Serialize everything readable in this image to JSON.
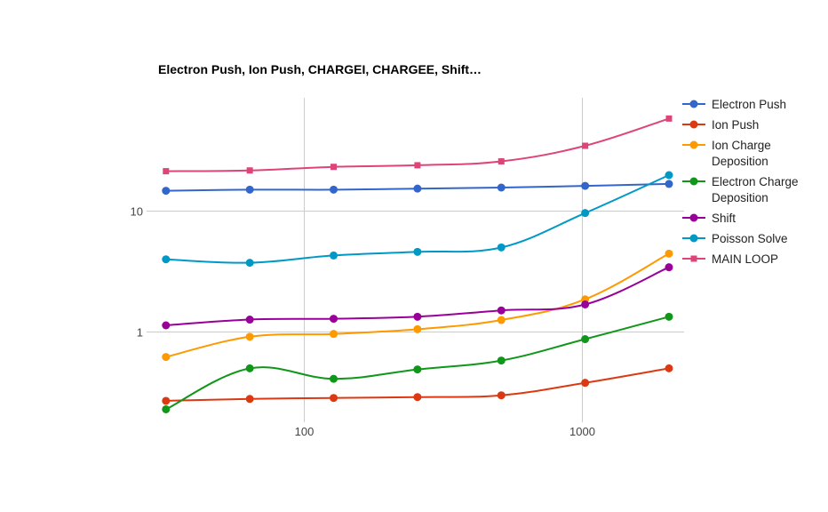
{
  "chart_data": {
    "type": "line",
    "title": "Electron Push, Ion Push, CHARGEI, CHARGEE, Shift…",
    "xlabel": "",
    "ylabel": "",
    "xscale": "log",
    "yscale": "log",
    "xlim": [
      30,
      2048
    ],
    "ylim": [
      0.18,
      100
    ],
    "x_ticks": [
      100,
      1000
    ],
    "x_tick_labels": [
      "100",
      "1000"
    ],
    "y_ticks": [
      1,
      10
    ],
    "y_tick_labels": [
      "1",
      "10"
    ],
    "grid": true,
    "legend_position": "right",
    "x": [
      32,
      64,
      128,
      256,
      512,
      1024,
      2048
    ],
    "series": [
      {
        "name": "Electron Push",
        "color": "#3366cc",
        "marker": "circle",
        "values": [
          14.5,
          14.8,
          14.8,
          15.1,
          15.4,
          15.9,
          16.5
        ]
      },
      {
        "name": "Ion Push",
        "color": "#dc3912",
        "marker": "circle",
        "values": [
          0.27,
          0.28,
          0.285,
          0.29,
          0.3,
          0.38,
          0.5
        ]
      },
      {
        "name": "Ion Charge Deposition",
        "color": "#ff9900",
        "marker": "circle",
        "values": [
          0.62,
          0.91,
          0.96,
          1.05,
          1.25,
          1.85,
          4.4
        ]
      },
      {
        "name": "Electron Charge Deposition",
        "color": "#109618",
        "marker": "circle",
        "values": [
          0.23,
          0.5,
          0.41,
          0.49,
          0.58,
          0.87,
          1.33
        ]
      },
      {
        "name": "Shift",
        "color": "#990099",
        "marker": "circle",
        "values": [
          1.13,
          1.26,
          1.28,
          1.33,
          1.5,
          1.68,
          3.4
        ]
      },
      {
        "name": "Poisson Solve",
        "color": "#0099c6",
        "marker": "circle",
        "values": [
          3.95,
          3.7,
          4.25,
          4.55,
          4.95,
          9.5,
          19.5
        ]
      },
      {
        "name": "MAIN LOOP",
        "color": "#dd4477",
        "marker": "square",
        "values": [
          21,
          21.3,
          22.8,
          23.5,
          25.3,
          34,
          57
        ]
      }
    ]
  }
}
